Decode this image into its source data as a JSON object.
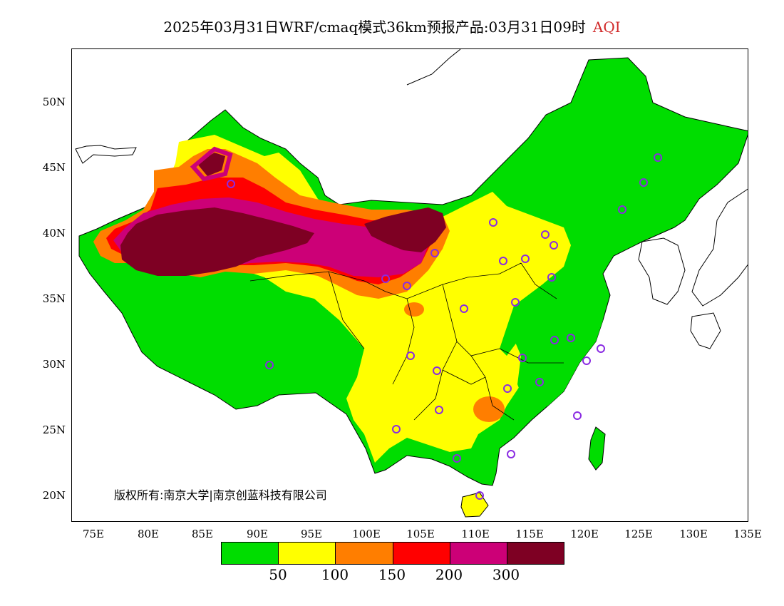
{
  "title": {
    "text": "2025年03月31日WRF/cmaq模式36km预报产品:03月31日09时",
    "variable": "AQI"
  },
  "axes": {
    "y_ticks": [
      "50N",
      "45N",
      "40N",
      "35N",
      "30N",
      "25N",
      "20N"
    ],
    "x_ticks": [
      "75E",
      "80E",
      "85E",
      "90E",
      "95E",
      "100E",
      "105E",
      "110E",
      "115E",
      "120E",
      "125E",
      "130E",
      "135E"
    ],
    "lon_range": [
      73,
      135
    ],
    "lat_range": [
      18,
      54
    ]
  },
  "copyright": "版权所有:南京大学|南京创蓝科技有限公司",
  "legend": {
    "colors": [
      "#00dd00",
      "#ffff00",
      "#ff7e00",
      "#ff0000",
      "#cc0077",
      "#7e0023"
    ],
    "labels": [
      "50",
      "100",
      "150",
      "200",
      "300"
    ]
  },
  "station_color": "#8a2be2"
}
